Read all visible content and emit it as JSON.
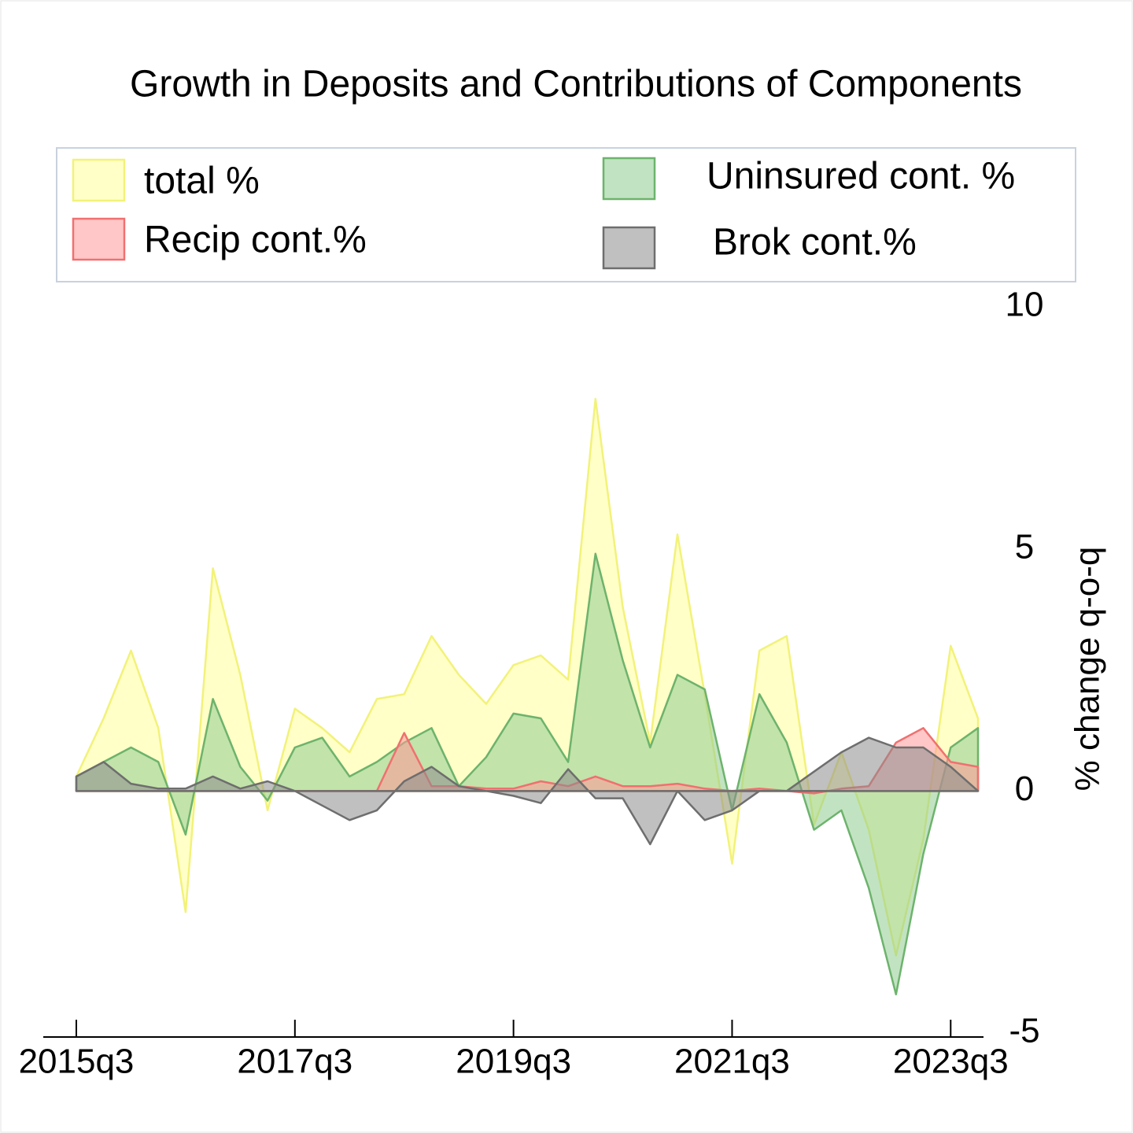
{
  "chart_data": {
    "type": "area",
    "title": "Growth in Deposits and Contributions of Components",
    "y_label": "% change q-o-q",
    "categories": [
      "2015q3",
      null,
      null,
      null,
      null,
      null,
      null,
      null,
      "2017q3",
      null,
      null,
      null,
      null,
      null,
      null,
      null,
      "2019q3",
      null,
      null,
      null,
      null,
      null,
      null,
      null,
      "2021q3",
      null,
      null,
      null,
      null,
      null,
      null,
      null,
      "2023q3",
      null
    ],
    "series": [
      {
        "name": "total %",
        "color": "#ffff99",
        "stroke": "#f2f27a",
        "values": [
          0.3,
          1.5,
          2.9,
          1.3,
          -2.5,
          4.6,
          2.4,
          -0.4,
          1.7,
          1.3,
          0.8,
          1.9,
          2.0,
          3.2,
          2.4,
          1.8,
          2.6,
          2.8,
          2.3,
          8.1,
          3.8,
          1.0,
          5.3,
          2.0,
          -1.5,
          2.9,
          3.2,
          -0.7,
          0.8,
          -0.8,
          -3.4,
          -1.0,
          3.0,
          1.5
        ]
      },
      {
        "name": "Uninsured cont. %",
        "color": "#8fcc8f",
        "stroke": "#6db36d",
        "values": [
          0.3,
          0.6,
          0.9,
          0.6,
          -0.9,
          1.9,
          0.5,
          -0.2,
          0.9,
          1.1,
          0.3,
          0.6,
          1.0,
          1.3,
          0.1,
          0.7,
          1.6,
          1.5,
          0.6,
          4.9,
          2.7,
          0.9,
          2.4,
          2.1,
          -0.4,
          2.0,
          1.0,
          -0.8,
          -0.4,
          -2.0,
          -4.2,
          -1.3,
          0.9,
          1.3
        ]
      },
      {
        "name": "Recip cont.%",
        "color": "#ff9999",
        "stroke": "#f07070",
        "values": [
          0,
          0,
          0,
          0,
          0,
          0,
          0,
          0,
          0,
          0,
          0,
          0,
          1.2,
          0.1,
          0.1,
          0.05,
          0.05,
          0.2,
          0.1,
          0.3,
          0.1,
          0.1,
          0.15,
          0.05,
          0,
          0.05,
          0,
          -0.05,
          0.05,
          0.1,
          1.0,
          1.3,
          0.6,
          0.5
        ]
      },
      {
        "name": "Brok cont.%",
        "color": "#8c8c8c",
        "stroke": "#6e6e6e",
        "values": [
          0.3,
          0.6,
          0.15,
          0.05,
          0.05,
          0.3,
          0.05,
          0.2,
          0,
          -0.3,
          -0.6,
          -0.4,
          0.2,
          0.5,
          0.1,
          0,
          -0.1,
          -0.25,
          0.45,
          -0.15,
          -0.15,
          -1.1,
          0,
          -0.6,
          -0.4,
          0,
          0,
          0.4,
          0.8,
          1.1,
          0.9,
          0.9,
          0.5,
          0
        ]
      }
    ],
    "ylim": [
      -5,
      10
    ],
    "yticks": [
      -5,
      0,
      5,
      10
    ],
    "y_axis_side": "right",
    "grid": false,
    "legend": "top"
  }
}
